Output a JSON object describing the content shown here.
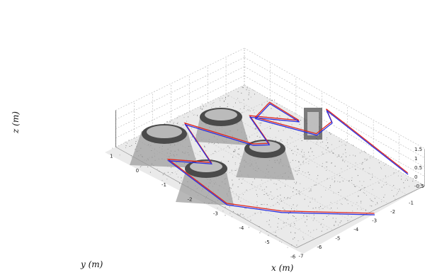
{
  "chart_data": {
    "type": "line",
    "title": "",
    "xlabel": "x (m)",
    "ylabel": "y (m)",
    "zlabel": "z (m)",
    "x_ticks": [
      "1",
      "0",
      "-1",
      "-2",
      "-3",
      "-4",
      "-5",
      "-6"
    ],
    "y_ticks": [
      "0",
      "-1",
      "-2",
      "-3",
      "-4",
      "-5",
      "-6",
      "-7"
    ],
    "z_ticks": [
      "1.5",
      "1",
      "0.5",
      "0",
      "-0.5"
    ],
    "grid": true,
    "colors": {
      "series_1": "#e0261d",
      "series_2": "#2a2ee0",
      "point_cloud": "#8a8a8a"
    },
    "series": [
      {
        "x": [
          -5.9,
          -2.6,
          -3.1,
          -3.0,
          -1.7,
          -1.4,
          -2.4,
          -1.2,
          -2.3,
          -1.9,
          0.1,
          -1.7,
          -0.6,
          -3.3,
          -4.7,
          -6.6
        ],
        "y": [
          -0.8,
          -0.6,
          -1.0,
          -1.7,
          -3.2,
          -2.0,
          -1.8,
          -2.8,
          -3.3,
          -3.6,
          -4.5,
          -5.6,
          -6.4,
          -7.0,
          -6.0,
          -3.6
        ],
        "z": [
          0.5,
          1.3,
          1.2,
          0.8,
          1.4,
          1.4,
          1.1,
          0.9,
          0.5,
          0.3,
          0.3,
          0.1,
          -0.2,
          -0.2,
          0.0,
          0.2
        ]
      },
      {
        "x": [
          -5.95,
          -2.65,
          -3.15,
          -3.05,
          -1.75,
          -1.45,
          -2.45,
          -1.25,
          -2.35,
          -1.95,
          0.05,
          -1.75,
          -0.65,
          -3.35,
          -4.75,
          -6.65
        ],
        "y": [
          -0.85,
          -0.65,
          -1.05,
          -1.75,
          -3.25,
          -2.05,
          -1.85,
          -2.85,
          -3.35,
          -3.65,
          -4.55,
          -5.65,
          -6.45,
          -7.05,
          -6.05,
          -3.65
        ],
        "z": [
          0.48,
          1.28,
          1.18,
          0.78,
          1.38,
          1.38,
          1.08,
          0.88,
          0.48,
          0.28,
          0.28,
          0.08,
          -0.22,
          -0.22,
          -0.02,
          0.18
        ]
      }
    ]
  }
}
